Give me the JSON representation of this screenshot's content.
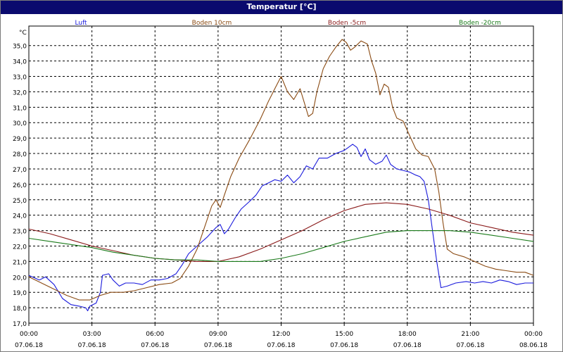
{
  "window": {
    "title": "Temperatur [°C]"
  },
  "colors": {
    "luft": "#1a1adc",
    "boden10": "#8a4a12",
    "boden_5": "#8a1a1a",
    "boden_20": "#1a7a1a",
    "grid": "#000000",
    "axis_text": "#000000"
  },
  "chart_data": {
    "type": "line",
    "title": "Temperatur [°C]",
    "ylabel": "°C",
    "xlabel": "",
    "ylim": [
      17.0,
      35.9
    ],
    "xlim_hours": [
      0,
      24
    ],
    "grid": true,
    "legend": "top",
    "y_ticks": [
      "17,0",
      "18,0",
      "19,0",
      "20,0",
      "21,0",
      "22,0",
      "23,0",
      "24,0",
      "25,0",
      "26,0",
      "27,0",
      "28,0",
      "29,0",
      "30,0",
      "31,0",
      "32,0",
      "33,0",
      "34,0",
      "35,0"
    ],
    "x_ticks": [
      {
        "time": "00:00",
        "date": "07.06.18"
      },
      {
        "time": "03:00",
        "date": "07.06.18"
      },
      {
        "time": "06:00",
        "date": "07.06.18"
      },
      {
        "time": "09:00",
        "date": "07.06.18"
      },
      {
        "time": "12:00",
        "date": "07.06.18"
      },
      {
        "time": "15:00",
        "date": "07.06.18"
      },
      {
        "time": "18:00",
        "date": "07.06.18"
      },
      {
        "time": "21:00",
        "date": "07.06.18"
      },
      {
        "time": "00:00",
        "date": "08.06.18"
      }
    ],
    "series": [
      {
        "name": "Luft",
        "color": "#1a1adc",
        "points": [
          [
            0,
            20.1
          ],
          [
            0.5,
            19.8
          ],
          [
            0.8,
            20.0
          ],
          [
            1.2,
            19.5
          ],
          [
            1.6,
            18.6
          ],
          [
            2.0,
            18.2
          ],
          [
            2.4,
            18.1
          ],
          [
            2.7,
            18.0
          ],
          [
            2.8,
            17.8
          ],
          [
            2.9,
            18.1
          ],
          [
            3.2,
            18.3
          ],
          [
            3.4,
            19.0
          ],
          [
            3.5,
            20.1
          ],
          [
            3.8,
            20.2
          ],
          [
            4.0,
            19.8
          ],
          [
            4.3,
            19.4
          ],
          [
            4.6,
            19.6
          ],
          [
            5.0,
            19.6
          ],
          [
            5.4,
            19.5
          ],
          [
            5.8,
            19.8
          ],
          [
            6.2,
            19.8
          ],
          [
            6.6,
            19.9
          ],
          [
            7.0,
            20.2
          ],
          [
            7.3,
            20.8
          ],
          [
            7.6,
            21.5
          ],
          [
            8.0,
            22.0
          ],
          [
            8.5,
            22.6
          ],
          [
            8.9,
            23.2
          ],
          [
            9.1,
            23.4
          ],
          [
            9.3,
            22.8
          ],
          [
            9.5,
            23.1
          ],
          [
            9.8,
            23.8
          ],
          [
            10.1,
            24.4
          ],
          [
            10.5,
            24.9
          ],
          [
            10.8,
            25.3
          ],
          [
            11.1,
            25.9
          ],
          [
            11.4,
            26.1
          ],
          [
            11.7,
            26.3
          ],
          [
            12.0,
            26.2
          ],
          [
            12.3,
            26.6
          ],
          [
            12.6,
            26.1
          ],
          [
            12.9,
            26.5
          ],
          [
            13.2,
            27.2
          ],
          [
            13.5,
            27.0
          ],
          [
            13.8,
            27.7
          ],
          [
            14.2,
            27.7
          ],
          [
            14.6,
            28.0
          ],
          [
            15.0,
            28.2
          ],
          [
            15.4,
            28.6
          ],
          [
            15.6,
            28.4
          ],
          [
            15.8,
            27.8
          ],
          [
            16.0,
            28.3
          ],
          [
            16.2,
            27.6
          ],
          [
            16.5,
            27.3
          ],
          [
            16.8,
            27.5
          ],
          [
            17.0,
            27.9
          ],
          [
            17.2,
            27.3
          ],
          [
            17.5,
            27.0
          ],
          [
            17.8,
            26.9
          ],
          [
            18.1,
            26.8
          ],
          [
            18.4,
            26.6
          ],
          [
            18.6,
            26.5
          ],
          [
            18.8,
            26.2
          ],
          [
            19.0,
            25.0
          ],
          [
            19.2,
            23.0
          ],
          [
            19.4,
            21.0
          ],
          [
            19.6,
            19.3
          ],
          [
            19.9,
            19.4
          ],
          [
            20.3,
            19.6
          ],
          [
            20.8,
            19.7
          ],
          [
            21.2,
            19.6
          ],
          [
            21.6,
            19.7
          ],
          [
            22.0,
            19.6
          ],
          [
            22.4,
            19.8
          ],
          [
            22.8,
            19.7
          ],
          [
            23.2,
            19.5
          ],
          [
            23.6,
            19.6
          ],
          [
            24.0,
            19.6
          ]
        ]
      },
      {
        "name": "Boden 10cm",
        "color": "#8a4a12",
        "points": [
          [
            0,
            20.0
          ],
          [
            0.6,
            19.6
          ],
          [
            1.2,
            19.2
          ],
          [
            1.8,
            18.8
          ],
          [
            2.4,
            18.5
          ],
          [
            2.9,
            18.5
          ],
          [
            3.4,
            18.8
          ],
          [
            3.9,
            19.0
          ],
          [
            4.5,
            19.0
          ],
          [
            5.0,
            19.1
          ],
          [
            5.6,
            19.3
          ],
          [
            6.2,
            19.5
          ],
          [
            6.8,
            19.6
          ],
          [
            7.2,
            19.9
          ],
          [
            7.6,
            20.7
          ],
          [
            8.0,
            21.8
          ],
          [
            8.4,
            23.4
          ],
          [
            8.7,
            24.6
          ],
          [
            8.9,
            25.0
          ],
          [
            9.1,
            24.5
          ],
          [
            9.3,
            25.3
          ],
          [
            9.6,
            26.5
          ],
          [
            10.0,
            27.7
          ],
          [
            10.5,
            28.9
          ],
          [
            11.0,
            30.2
          ],
          [
            11.4,
            31.4
          ],
          [
            11.7,
            32.2
          ],
          [
            12.0,
            33.0
          ],
          [
            12.3,
            32.0
          ],
          [
            12.6,
            31.5
          ],
          [
            12.9,
            32.2
          ],
          [
            13.1,
            31.3
          ],
          [
            13.3,
            30.4
          ],
          [
            13.5,
            30.6
          ],
          [
            13.7,
            32.0
          ],
          [
            14.0,
            33.5
          ],
          [
            14.3,
            34.3
          ],
          [
            14.6,
            34.9
          ],
          [
            14.9,
            35.4
          ],
          [
            15.1,
            35.2
          ],
          [
            15.3,
            34.7
          ],
          [
            15.5,
            34.9
          ],
          [
            15.8,
            35.3
          ],
          [
            16.1,
            35.1
          ],
          [
            16.3,
            34.0
          ],
          [
            16.5,
            33.2
          ],
          [
            16.7,
            31.8
          ],
          [
            16.9,
            32.5
          ],
          [
            17.1,
            32.3
          ],
          [
            17.3,
            31.0
          ],
          [
            17.5,
            30.3
          ],
          [
            17.8,
            30.1
          ],
          [
            18.1,
            29.2
          ],
          [
            18.4,
            28.3
          ],
          [
            18.7,
            27.9
          ],
          [
            19.0,
            27.8
          ],
          [
            19.3,
            27.0
          ],
          [
            19.5,
            25.5
          ],
          [
            19.7,
            23.5
          ],
          [
            19.9,
            21.8
          ],
          [
            20.2,
            21.5
          ],
          [
            20.7,
            21.3
          ],
          [
            21.2,
            21.0
          ],
          [
            21.7,
            20.7
          ],
          [
            22.2,
            20.5
          ],
          [
            22.7,
            20.4
          ],
          [
            23.2,
            20.3
          ],
          [
            23.6,
            20.3
          ],
          [
            24.0,
            20.1
          ]
        ]
      },
      {
        "name": "Boden -5cm",
        "color": "#8a1a1a",
        "points": [
          [
            0,
            23.1
          ],
          [
            1,
            22.8
          ],
          [
            2,
            22.4
          ],
          [
            3,
            22.0
          ],
          [
            4,
            21.7
          ],
          [
            5,
            21.4
          ],
          [
            6,
            21.2
          ],
          [
            7,
            21.1
          ],
          [
            8,
            21.0
          ],
          [
            9,
            21.0
          ],
          [
            10,
            21.3
          ],
          [
            11,
            21.8
          ],
          [
            12,
            22.4
          ],
          [
            13,
            23.0
          ],
          [
            14,
            23.7
          ],
          [
            15,
            24.3
          ],
          [
            16,
            24.7
          ],
          [
            17,
            24.8
          ],
          [
            18,
            24.7
          ],
          [
            19,
            24.4
          ],
          [
            20,
            24.0
          ],
          [
            21,
            23.5
          ],
          [
            22,
            23.2
          ],
          [
            23,
            22.9
          ],
          [
            24,
            22.7
          ]
        ]
      },
      {
        "name": "Boden -20cm",
        "color": "#1a7a1a",
        "points": [
          [
            0,
            22.5
          ],
          [
            1,
            22.3
          ],
          [
            2,
            22.1
          ],
          [
            3,
            21.9
          ],
          [
            4,
            21.6
          ],
          [
            5,
            21.4
          ],
          [
            6,
            21.2
          ],
          [
            7,
            21.1
          ],
          [
            8,
            21.1
          ],
          [
            9,
            21.0
          ],
          [
            10,
            21.0
          ],
          [
            11,
            21.0
          ],
          [
            12,
            21.2
          ],
          [
            13,
            21.5
          ],
          [
            14,
            21.9
          ],
          [
            15,
            22.3
          ],
          [
            16,
            22.6
          ],
          [
            17,
            22.9
          ],
          [
            18,
            23.0
          ],
          [
            19,
            23.0
          ],
          [
            20,
            23.0
          ],
          [
            21,
            22.9
          ],
          [
            22,
            22.7
          ],
          [
            23,
            22.5
          ],
          [
            24,
            22.3
          ]
        ]
      }
    ]
  }
}
